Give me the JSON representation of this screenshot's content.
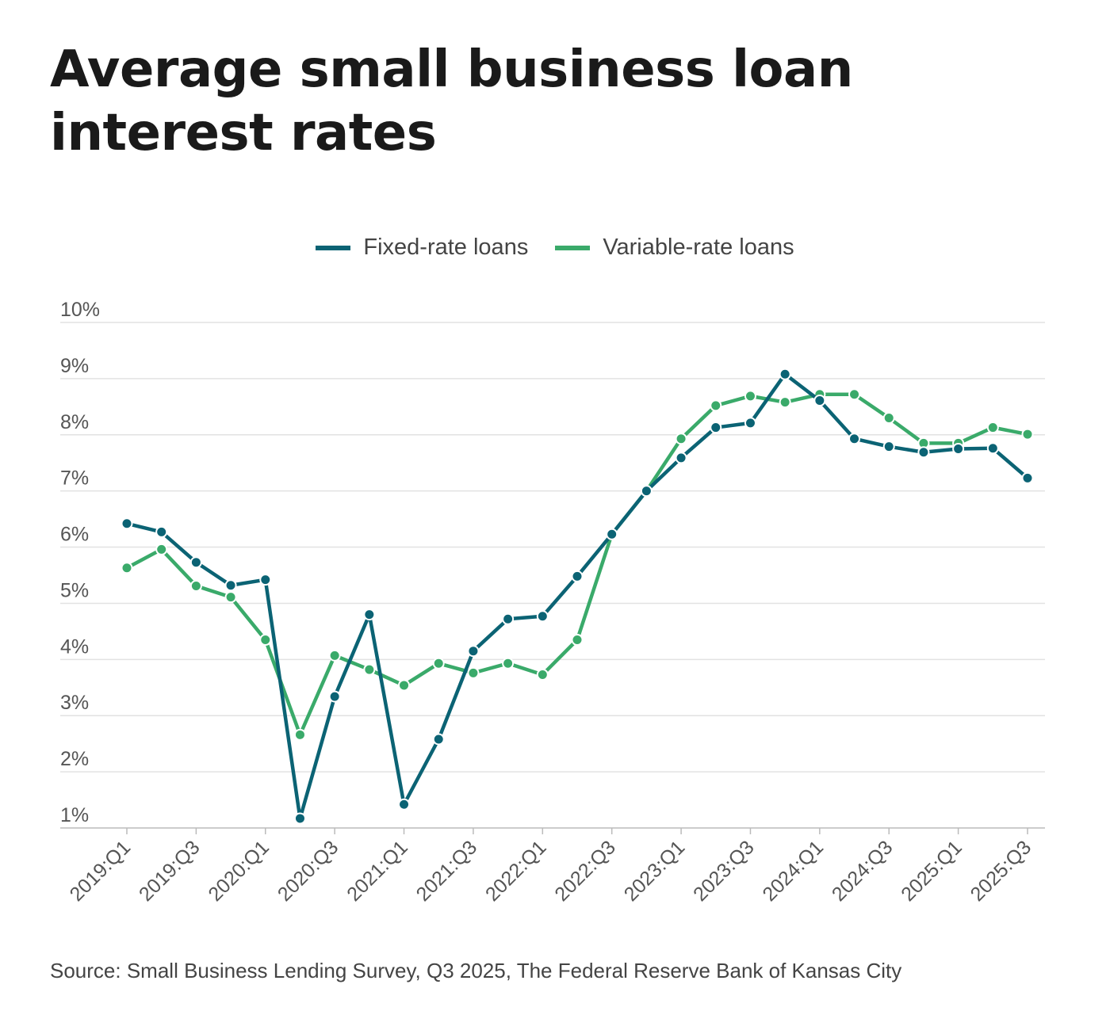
{
  "title": "Average small business loan interest rates",
  "source": "Source: Small Business Lending Survey, Q3 2025, The Federal Reserve Bank of Kansas City",
  "chart_data": {
    "type": "line",
    "title": "Average small business loan interest rates",
    "xlabel": "",
    "ylabel": "",
    "ylim": [
      1,
      10
    ],
    "yticks": [
      "1%",
      "2%",
      "3%",
      "4%",
      "5%",
      "6%",
      "7%",
      "8%",
      "9%",
      "10%"
    ],
    "grid": true,
    "legend_position": "top-center",
    "x": [
      "2019:Q1",
      "2019:Q2",
      "2019:Q3",
      "2019:Q4",
      "2020:Q1",
      "2020:Q2",
      "2020:Q3",
      "2020:Q4",
      "2021:Q1",
      "2021:Q2",
      "2021:Q3",
      "2021:Q4",
      "2022:Q1",
      "2022:Q2",
      "2022:Q3",
      "2022:Q4",
      "2023:Q1",
      "2023:Q2",
      "2023:Q3",
      "2023:Q4",
      "2024:Q1",
      "2024:Q2",
      "2024:Q3",
      "2024:Q4",
      "2025:Q1",
      "2025:Q2",
      "2025:Q3"
    ],
    "xtick_labels": [
      "2019:Q1",
      "2019:Q3",
      "2020:Q1",
      "2020:Q3",
      "2021:Q1",
      "2021:Q3",
      "2022:Q1",
      "2022:Q3",
      "2023:Q1",
      "2023:Q3",
      "2024:Q1",
      "2024:Q3",
      "2025:Q1",
      "2025:Q3"
    ],
    "series": [
      {
        "name": "Fixed-rate loans",
        "color": "#0b6374",
        "values": [
          6.42,
          6.27,
          5.73,
          5.32,
          5.42,
          1.17,
          3.34,
          4.8,
          1.42,
          2.58,
          4.15,
          4.72,
          4.77,
          5.48,
          6.23,
          7.0,
          7.59,
          8.13,
          8.21,
          9.08,
          8.61,
          7.93,
          7.79,
          7.69,
          7.75,
          7.76,
          7.23
        ]
      },
      {
        "name": "Variable-rate loans",
        "color": "#3aaa6a",
        "values": [
          5.63,
          5.96,
          5.31,
          5.11,
          4.35,
          2.66,
          4.07,
          3.82,
          3.54,
          3.93,
          3.76,
          3.93,
          3.73,
          4.35,
          6.23,
          7.0,
          7.93,
          8.52,
          8.69,
          8.58,
          8.72,
          8.72,
          8.3,
          7.85,
          7.85,
          8.13,
          8.01
        ]
      }
    ]
  }
}
